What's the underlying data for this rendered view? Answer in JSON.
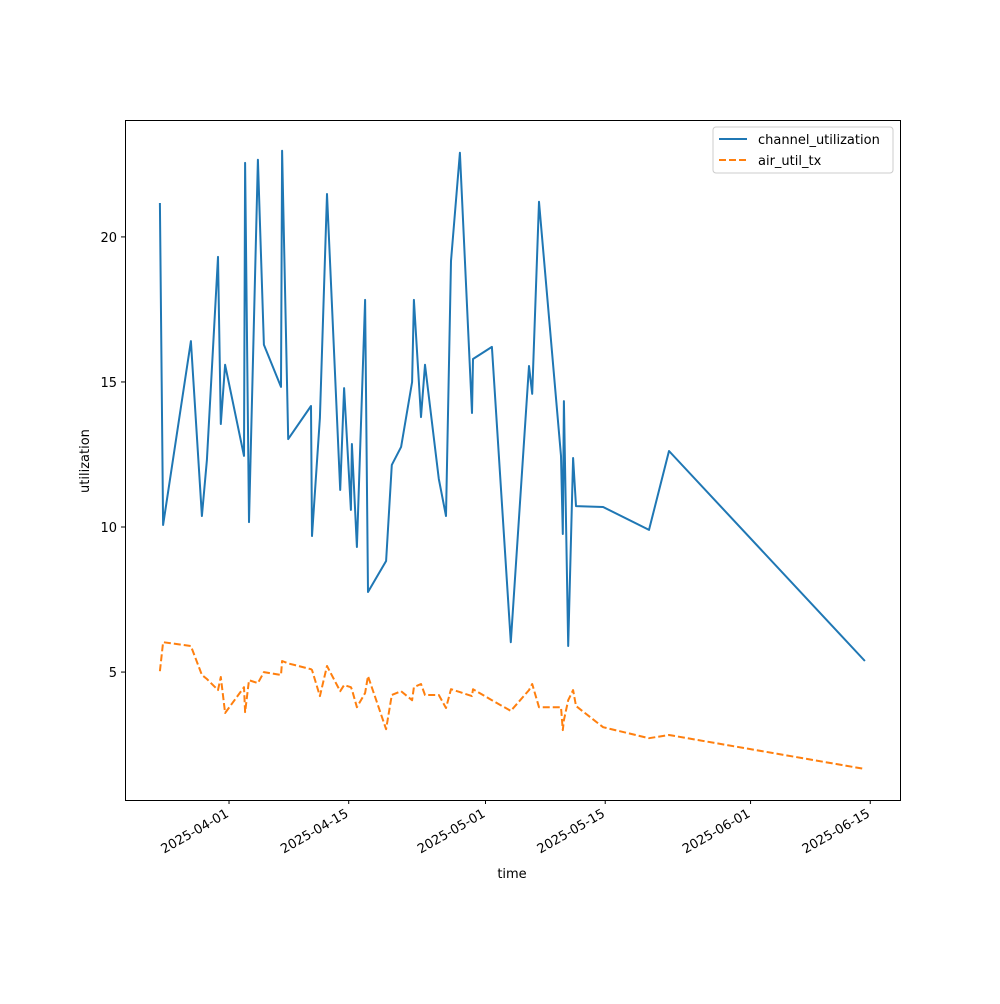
{
  "chart_data": {
    "type": "line",
    "title": "",
    "xlabel": "time",
    "ylabel": "utilization",
    "xlim": [
      "2025-03-19 20:00",
      "2025-06-18 11:30"
    ],
    "ylim": [
      0.59,
      24.03
    ],
    "grid": false,
    "legend_position": "top-right",
    "x_ticks": [
      {
        "date": "2025-04-01 00:00",
        "label": "2025-04-01"
      },
      {
        "date": "2025-04-15 00:00",
        "label": "2025-04-15"
      },
      {
        "date": "2025-05-01 00:00",
        "label": "2025-05-01"
      },
      {
        "date": "2025-05-15 00:00",
        "label": "2025-05-15"
      },
      {
        "date": "2025-06-01 00:00",
        "label": "2025-06-01"
      },
      {
        "date": "2025-06-15 00:00",
        "label": "2025-06-15"
      }
    ],
    "y_ticks": [
      {
        "value": 5,
        "label": "5"
      },
      {
        "value": 10,
        "label": "10"
      },
      {
        "value": 15,
        "label": "15"
      },
      {
        "value": 20,
        "label": "20"
      }
    ],
    "x": [
      "2025-03-23 22:00",
      "2025-03-24 07:00",
      "2025-03-27 13:00",
      "2025-03-28 20:00",
      "2025-03-29 10:00",
      "2025-03-30 17:00",
      "2025-03-31 01:00",
      "2025-03-31 13:00",
      "2025-04-02 18:00",
      "2025-04-02 21:00",
      "2025-04-03 08:00",
      "2025-04-04 09:00",
      "2025-04-05 02:00",
      "2025-04-07 02:00",
      "2025-04-07 05:00",
      "2025-04-07 22:00",
      "2025-04-10 14:00",
      "2025-04-10 17:00",
      "2025-04-11 15:00",
      "2025-04-12 11:00",
      "2025-04-14 00:00",
      "2025-04-14 11:00",
      "2025-04-15 06:00",
      "2025-04-15 09:00",
      "2025-04-15 23:00",
      "2025-04-16 22:00",
      "2025-04-17 06:00",
      "2025-04-19 09:00",
      "2025-04-20 01:00",
      "2025-04-21 03:00",
      "2025-04-22 10:00",
      "2025-04-22 15:00",
      "2025-04-23 11:00",
      "2025-04-23 22:00",
      "2025-04-25 13:00",
      "2025-04-26 09:00",
      "2025-04-26 23:00",
      "2025-04-28 00:00",
      "2025-04-29 10:00",
      "2025-04-29 13:00",
      "2025-05-01 18:00",
      "2025-05-03 23:00",
      "2025-05-06 02:00",
      "2025-05-06 11:00",
      "2025-05-07 06:00",
      "2025-05-09 20:00",
      "2025-05-10 01:00",
      "2025-05-10 04:00",
      "2025-05-10 16:00",
      "2025-05-11 06:00",
      "2025-05-11 14:00",
      "2025-05-14 18:00",
      "2025-05-20 03:00",
      "2025-05-22 11:00",
      "2025-06-14 09:00"
    ],
    "series": [
      {
        "name": "channel_utilization",
        "color": "#1f77b4",
        "style": "solid",
        "values": [
          21.17,
          10.07,
          16.41,
          10.38,
          12.31,
          19.31,
          13.55,
          15.59,
          12.45,
          22.55,
          10.17,
          22.66,
          16.28,
          14.83,
          22.97,
          13.03,
          14.17,
          9.69,
          13.76,
          21.48,
          11.28,
          14.79,
          10.59,
          12.86,
          9.31,
          17.83,
          7.76,
          8.83,
          12.14,
          12.76,
          15.0,
          17.83,
          13.79,
          15.59,
          11.66,
          10.38,
          19.17,
          22.9,
          13.93,
          15.79,
          16.21,
          6.03,
          15.55,
          14.59,
          21.21,
          12.45,
          9.76,
          14.34,
          5.9,
          12.38,
          10.72,
          10.69,
          9.9,
          12.62,
          5.38
        ]
      },
      {
        "name": "air_util_tx",
        "color": "#ff7f0e",
        "style": "dashed",
        "values": [
          5.03,
          6.03,
          5.9,
          4.9,
          4.76,
          4.38,
          4.83,
          3.59,
          4.48,
          3.62,
          4.72,
          4.62,
          5.0,
          4.9,
          5.38,
          5.3,
          5.1,
          5.07,
          4.17,
          5.21,
          4.34,
          4.55,
          4.48,
          4.4,
          3.79,
          4.28,
          4.86,
          3.03,
          4.21,
          4.34,
          4.03,
          4.48,
          4.59,
          4.21,
          4.21,
          3.76,
          4.41,
          4.31,
          4.17,
          4.41,
          4.03,
          3.66,
          4.38,
          4.59,
          3.79,
          3.79,
          3.0,
          3.34,
          4.03,
          4.38,
          3.83,
          3.1,
          2.72,
          2.83,
          1.66
        ]
      }
    ]
  }
}
